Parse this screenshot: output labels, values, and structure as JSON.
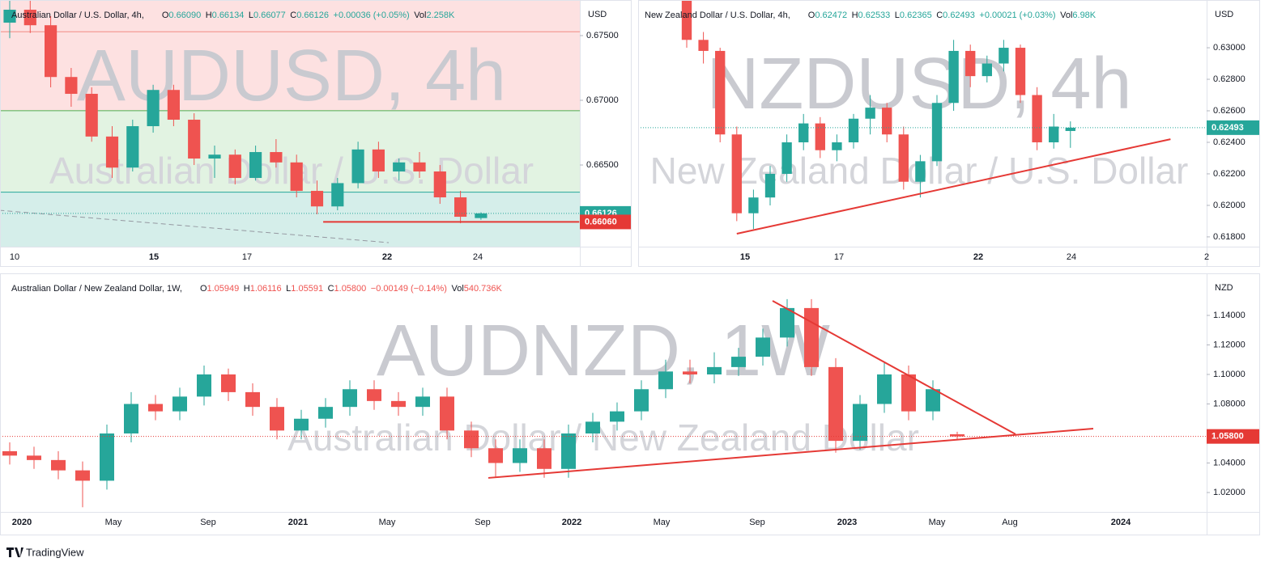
{
  "chart_data": [
    {
      "type": "candlestick",
      "title": "Australian Dollar / U.S. Dollar, 4h,",
      "legend_keys": [
        "O",
        "H",
        "L",
        "C",
        "Vol"
      ],
      "legend_values": [
        "0.66090",
        "0.66134",
        "0.66077",
        "0.66126",
        "2.258K"
      ],
      "change": "+0.00036 (+0.05%)",
      "legend_color": "#26a69a",
      "watermark": "AUDUSD, 4h",
      "watermark_sub": "Australian Dollar / U.S. Dollar",
      "currency": "USD",
      "ylim": [
        0.65869,
        0.67775
      ],
      "yticks": [
        {
          "value": 0.665,
          "label": "0.66500"
        },
        {
          "value": 0.67,
          "label": "0.67000"
        },
        {
          "value": 0.675,
          "label": "0.67500"
        }
      ],
      "x_labels": [
        "10",
        "15",
        "17",
        "22",
        "24"
      ],
      "up_color": "#26a69a",
      "down_color": "#ef5350",
      "candles": {
        "open": [
          0.676,
          0.677,
          0.6758,
          0.6718,
          0.6705,
          0.6672,
          0.6648,
          0.668,
          0.6708,
          0.6685,
          0.6655,
          0.6658,
          0.664,
          0.666,
          0.6652,
          0.663,
          0.6618,
          0.6636,
          0.6662,
          0.6645,
          0.6652,
          0.6645,
          0.6625,
          0.6609
        ],
        "high": [
          0.6778,
          0.6778,
          0.6765,
          0.6725,
          0.671,
          0.668,
          0.6685,
          0.6712,
          0.6712,
          0.669,
          0.6665,
          0.6662,
          0.6665,
          0.667,
          0.6658,
          0.6638,
          0.664,
          0.6668,
          0.6668,
          0.6655,
          0.666,
          0.665,
          0.663,
          0.66134
        ],
        "low": [
          0.6748,
          0.6752,
          0.671,
          0.6695,
          0.6668,
          0.664,
          0.6645,
          0.6675,
          0.668,
          0.665,
          0.664,
          0.6635,
          0.6638,
          0.6648,
          0.6625,
          0.6612,
          0.6615,
          0.6632,
          0.664,
          0.6638,
          0.664,
          0.662,
          0.6605,
          0.66077
        ],
        "close": [
          0.677,
          0.6758,
          0.6718,
          0.6705,
          0.6672,
          0.6648,
          0.668,
          0.6708,
          0.6685,
          0.6655,
          0.6658,
          0.664,
          0.666,
          0.6652,
          0.663,
          0.6618,
          0.6636,
          0.6662,
          0.6645,
          0.6652,
          0.6645,
          0.6625,
          0.661,
          0.66126
        ]
      },
      "zones": [
        {
          "y": [
            0.6692,
            0.67775
          ],
          "color": "#fde1e1"
        },
        {
          "y": [
            0.6629,
            0.6692
          ],
          "color": "#e2f3e2"
        },
        {
          "y": [
            0.65869,
            0.6629
          ],
          "color": "#d5eeea"
        }
      ],
      "hlines": [
        {
          "value": 0.6753,
          "color": "#f28b82"
        },
        {
          "value": 0.6692,
          "color": "#4caf50"
        },
        {
          "value": 0.6629,
          "color": "#26a69a"
        }
      ],
      "trendlines": [
        {
          "from": [
            15.3,
            0.6606
          ],
          "to": [
            27.8,
            0.6606
          ],
          "color": "#e53935"
        },
        {
          "from": [
            -0.5,
            0.6615
          ],
          "to": [
            18.5,
            0.659
          ],
          "color": "#9598a1",
          "dashed": true
        }
      ],
      "price_tags": [
        {
          "value": 0.66126,
          "label": "0.66126",
          "color": "#26a69a",
          "dotted": true
        },
        {
          "value": 0.6606,
          "label": "0.66060",
          "color": "#e53935"
        }
      ]
    },
    {
      "type": "candlestick",
      "title": "New Zealand Dollar / U.S. Dollar, 4h,",
      "legend_keys": [
        "O",
        "H",
        "L",
        "C",
        "Vol"
      ],
      "legend_values": [
        "0.62472",
        "0.62533",
        "0.62365",
        "0.62493",
        "6.98K"
      ],
      "change": "+0.00021 (+0.03%)",
      "legend_color": "#26a69a",
      "watermark": "NZDUSD, 4h",
      "watermark_sub": "New Zealand Dollar / U.S. Dollar",
      "currency": "USD",
      "ylim": [
        0.61738,
        0.63303
      ],
      "yticks": [
        {
          "value": 0.618,
          "label": "0.61800"
        },
        {
          "value": 0.62,
          "label": "0.62000"
        },
        {
          "value": 0.622,
          "label": "0.62200"
        },
        {
          "value": 0.624,
          "label": "0.62400"
        },
        {
          "value": 0.626,
          "label": "0.62600"
        },
        {
          "value": 0.628,
          "label": "0.62800"
        },
        {
          "value": 0.63,
          "label": "0.63000"
        }
      ],
      "x_labels": [
        "15",
        "17",
        "22",
        "24",
        "2"
      ],
      "up_color": "#26a69a",
      "down_color": "#ef5350",
      "candles": {
        "open": [
          0.633,
          0.6305,
          0.6298,
          0.6245,
          0.6195,
          0.6205,
          0.622,
          0.624,
          0.6252,
          0.6235,
          0.624,
          0.6255,
          0.6262,
          0.6245,
          0.6215,
          0.6228,
          0.6265,
          0.6298,
          0.6282,
          0.629,
          0.63,
          0.627,
          0.624,
          0.62472
        ],
        "high": [
          0.6333,
          0.631,
          0.63,
          0.625,
          0.621,
          0.6225,
          0.6245,
          0.6258,
          0.6256,
          0.6245,
          0.6258,
          0.627,
          0.6265,
          0.625,
          0.6232,
          0.627,
          0.6305,
          0.6302,
          0.6295,
          0.6305,
          0.6302,
          0.6275,
          0.6258,
          0.62533
        ],
        "low": [
          0.63,
          0.629,
          0.624,
          0.619,
          0.6185,
          0.62,
          0.6215,
          0.6235,
          0.623,
          0.6228,
          0.6236,
          0.6245,
          0.624,
          0.621,
          0.6205,
          0.6225,
          0.626,
          0.6275,
          0.6278,
          0.6285,
          0.6265,
          0.6235,
          0.6236,
          0.62365
        ],
        "close": [
          0.6305,
          0.6298,
          0.6245,
          0.6195,
          0.6205,
          0.622,
          0.624,
          0.6252,
          0.6235,
          0.624,
          0.6255,
          0.6262,
          0.6245,
          0.6215,
          0.6228,
          0.6265,
          0.6298,
          0.6282,
          0.629,
          0.63,
          0.627,
          0.624,
          0.625,
          0.62493
        ]
      },
      "trendlines": [
        {
          "from": [
            3,
            0.6182
          ],
          "to": [
            29,
            0.6242
          ],
          "color": "#e53935"
        }
      ],
      "price_tags": [
        {
          "value": 0.62493,
          "label": "0.62493",
          "color": "#26a69a",
          "dotted": true
        }
      ]
    },
    {
      "type": "candlestick",
      "title": "Australian Dollar / New Zealand Dollar, 1W,",
      "legend_keys": [
        "O",
        "H",
        "L",
        "C",
        "Vol"
      ],
      "legend_values": [
        "1.05949",
        "1.06116",
        "1.05591",
        "1.05800",
        "540.736K"
      ],
      "change": "−0.00149 (−0.14%)",
      "legend_color": "#ef5350",
      "watermark": "AUDNZD, 1W",
      "watermark_sub": "Australian Dollar / New Zealand Dollar",
      "currency": "NZD",
      "ylim": [
        1.00685,
        1.1685
      ],
      "yticks": [
        {
          "value": 1.02,
          "label": "1.02000"
        },
        {
          "value": 1.04,
          "label": "1.04000"
        },
        {
          "value": 1.06,
          "label": "1.06000"
        },
        {
          "value": 1.08,
          "label": "1.08000"
        },
        {
          "value": 1.1,
          "label": "1.10000"
        },
        {
          "value": 1.12,
          "label": "1.12000"
        },
        {
          "value": 1.14,
          "label": "1.14000"
        }
      ],
      "x_labels": [
        "2020",
        "May",
        "Sep",
        "2021",
        "May",
        "Sep",
        "2022",
        "May",
        "Sep",
        "2023",
        "May",
        "Aug",
        "2024"
      ],
      "up_color": "#26a69a",
      "down_color": "#ef5350",
      "candles": {
        "open": [
          1.048,
          1.045,
          1.042,
          1.035,
          1.028,
          1.06,
          1.08,
          1.075,
          1.085,
          1.1,
          1.088,
          1.078,
          1.062,
          1.07,
          1.078,
          1.09,
          1.082,
          1.078,
          1.085,
          1.062,
          1.05,
          1.04,
          1.05,
          1.036,
          1.06,
          1.068,
          1.075,
          1.09,
          1.102,
          1.1,
          1.105,
          1.112,
          1.125,
          1.145,
          1.105,
          1.055,
          1.08,
          1.1,
          1.075,
          1.05949
        ],
        "high": [
          1.054,
          1.051,
          1.048,
          1.041,
          1.066,
          1.088,
          1.086,
          1.091,
          1.106,
          1.104,
          1.094,
          1.084,
          1.076,
          1.084,
          1.096,
          1.096,
          1.088,
          1.091,
          1.091,
          1.068,
          1.056,
          1.056,
          1.056,
          1.066,
          1.074,
          1.081,
          1.096,
          1.11,
          1.11,
          1.115,
          1.118,
          1.131,
          1.151,
          1.151,
          1.111,
          1.086,
          1.108,
          1.106,
          1.096,
          1.06116
        ],
        "low": [
          1.039,
          1.036,
          1.029,
          1.01,
          1.022,
          1.054,
          1.069,
          1.069,
          1.079,
          1.082,
          1.072,
          1.056,
          1.056,
          1.064,
          1.072,
          1.076,
          1.072,
          1.072,
          1.056,
          1.044,
          1.03,
          1.034,
          1.03,
          1.03,
          1.054,
          1.062,
          1.069,
          1.084,
          1.094,
          1.094,
          1.099,
          1.106,
          1.119,
          1.099,
          1.047,
          1.049,
          1.074,
          1.069,
          1.069,
          1.05591
        ],
        "close": [
          1.045,
          1.042,
          1.035,
          1.028,
          1.06,
          1.08,
          1.075,
          1.085,
          1.1,
          1.088,
          1.078,
          1.062,
          1.07,
          1.078,
          1.09,
          1.082,
          1.078,
          1.085,
          1.062,
          1.05,
          1.04,
          1.05,
          1.036,
          1.06,
          1.068,
          1.075,
          1.09,
          1.102,
          1.1,
          1.105,
          1.112,
          1.125,
          1.145,
          1.105,
          1.055,
          1.08,
          1.1,
          1.075,
          1.09,
          1.058
        ]
      },
      "trendlines": [
        {
          "from": [
            19.7,
            1.0299
          ],
          "to": [
            44.6,
            1.0633
          ],
          "color": "#e53935"
        },
        {
          "from": [
            31.4,
            1.1499
          ],
          "to": [
            41.4,
            1.0595
          ],
          "color": "#e53935"
        }
      ],
      "price_tags": [
        {
          "value": 1.058,
          "label": "1.05800",
          "color": "#e53935",
          "dotted": true
        }
      ]
    }
  ],
  "footer": "TradingView"
}
